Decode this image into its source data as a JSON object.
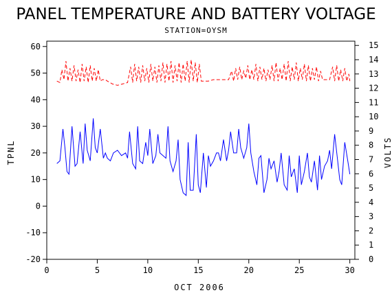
{
  "chart_data": {
    "type": "line",
    "title": "PANEL TEMPERATURE AND BATTERY VOLTAGE",
    "subtitle": "STATION=OYSM",
    "xlabel": "OCT 2006",
    "ylabel_left": "TPNL",
    "ylabel_right": "VOLTS",
    "xlim": [
      0,
      30.5
    ],
    "ylim_left": [
      -20,
      62
    ],
    "ylim_right": [
      0,
      15.3
    ],
    "x_ticks": [
      0,
      5,
      10,
      15,
      20,
      25,
      30
    ],
    "y_left_ticks": [
      -20,
      -10,
      0,
      10,
      20,
      30,
      40,
      50,
      60
    ],
    "y_right_ticks": [
      0,
      1,
      2,
      3,
      4,
      5,
      6,
      7,
      8,
      9,
      10,
      11,
      12,
      13,
      14,
      15
    ],
    "grid": false,
    "series": [
      {
        "axis": "left",
        "color": "#0000ff",
        "style": "solid",
        "x": [
          1.0,
          1.3,
          1.6,
          1.8,
          2.0,
          2.2,
          2.5,
          2.8,
          3.0,
          3.3,
          3.6,
          3.8,
          4.0,
          4.3,
          4.6,
          4.8,
          5.0,
          5.3,
          5.6,
          5.8,
          6.0,
          6.3,
          6.6,
          7.0,
          7.4,
          7.8,
          8.0,
          8.2,
          8.5,
          8.8,
          9.0,
          9.2,
          9.5,
          9.8,
          10.0,
          10.2,
          10.5,
          10.8,
          11.0,
          11.2,
          11.5,
          11.8,
          12.0,
          12.2,
          12.5,
          12.8,
          13.0,
          13.2,
          13.5,
          13.8,
          14.0,
          14.2,
          14.5,
          14.8,
          15.0,
          15.2,
          15.5,
          15.8,
          16.0,
          16.2,
          16.5,
          16.8,
          17.0,
          17.2,
          17.5,
          17.8,
          18.0,
          18.2,
          18.5,
          18.8,
          19.0,
          19.2,
          19.5,
          19.8,
          20.0,
          20.2,
          20.5,
          20.8,
          21.0,
          21.2,
          21.5,
          21.8,
          22.0,
          22.2,
          22.5,
          22.8,
          23.0,
          23.2,
          23.5,
          23.8,
          24.0,
          24.2,
          24.5,
          24.8,
          25.0,
          25.2,
          25.5,
          25.8,
          26.0,
          26.2,
          26.5,
          26.8,
          27.0,
          27.2,
          27.5,
          27.8,
          28.0,
          28.2,
          28.5,
          28.8,
          29.0,
          29.2,
          29.5,
          29.8,
          30.0
        ],
        "values": [
          16,
          17,
          29,
          22,
          13,
          12,
          30,
          15,
          16,
          28,
          16,
          31,
          21,
          17,
          33,
          22,
          20,
          29,
          18,
          20,
          18,
          17,
          20,
          21,
          19,
          20,
          18,
          28,
          16,
          14,
          30,
          17,
          16,
          24,
          19,
          29,
          16,
          19,
          27,
          20,
          19,
          18,
          30,
          17,
          13,
          17,
          25,
          10,
          5,
          4,
          24,
          6,
          6,
          27,
          8,
          5,
          20,
          7,
          19,
          15,
          17,
          20,
          20,
          17,
          25,
          17,
          21,
          28,
          20,
          20,
          29,
          22,
          18,
          22,
          31,
          20,
          13,
          8,
          18,
          19,
          5,
          10,
          18,
          14,
          17,
          9,
          13,
          20,
          8,
          6,
          19,
          11,
          14,
          5,
          19,
          8,
          13,
          20,
          11,
          9,
          17,
          6,
          19,
          10,
          15,
          17,
          21,
          14,
          27,
          17,
          10,
          8,
          24,
          17,
          12
        ]
      },
      {
        "axis": "right",
        "color": "#ff0000",
        "style": "dashed",
        "x": [
          1.0,
          1.3,
          1.5,
          1.7,
          1.9,
          2.1,
          2.3,
          2.5,
          2.7,
          2.9,
          3.1,
          3.3,
          3.5,
          3.7,
          3.9,
          4.1,
          4.3,
          4.5,
          4.7,
          4.9,
          5.1,
          5.3,
          5.5,
          5.8,
          6.0,
          6.5,
          7.0,
          7.5,
          8.0,
          8.3,
          8.5,
          8.7,
          8.9,
          9.1,
          9.3,
          9.5,
          9.7,
          9.9,
          10.1,
          10.3,
          10.5,
          10.7,
          10.9,
          11.1,
          11.3,
          11.5,
          11.7,
          11.9,
          12.1,
          12.3,
          12.5,
          12.7,
          12.9,
          13.1,
          13.3,
          13.5,
          13.7,
          13.9,
          14.1,
          14.3,
          14.5,
          14.7,
          14.9,
          15.1,
          15.3,
          15.5,
          16.0,
          16.5,
          17.0,
          17.5,
          18.0,
          18.3,
          18.5,
          18.7,
          18.9,
          19.1,
          19.3,
          19.5,
          19.7,
          19.9,
          20.1,
          20.3,
          20.5,
          20.7,
          20.9,
          21.1,
          21.3,
          21.5,
          21.7,
          21.9,
          22.1,
          22.3,
          22.5,
          22.7,
          22.9,
          23.1,
          23.3,
          23.5,
          23.7,
          23.9,
          24.1,
          24.3,
          24.5,
          24.7,
          24.9,
          25.1,
          25.3,
          25.5,
          25.7,
          25.9,
          26.1,
          26.3,
          26.5,
          26.7,
          26.9,
          27.1,
          27.3,
          27.5,
          28.0,
          28.3,
          28.5,
          28.7,
          28.9,
          29.1,
          29.3,
          29.5,
          29.7,
          29.9,
          30.0
        ],
        "values": [
          12.5,
          12.4,
          13.3,
          12.6,
          13.9,
          12.5,
          13.4,
          12.5,
          13.6,
          12.5,
          13.3,
          12.4,
          13.7,
          12.5,
          13.5,
          12.4,
          13.6,
          12.5,
          13.4,
          12.5,
          13.3,
          12.5,
          12.6,
          12.6,
          12.5,
          12.3,
          12.2,
          12.3,
          12.4,
          13.5,
          12.4,
          13.7,
          12.5,
          13.5,
          12.4,
          13.6,
          12.5,
          13.4,
          12.4,
          13.7,
          12.5,
          13.5,
          12.4,
          13.6,
          12.5,
          13.8,
          12.4,
          13.7,
          12.5,
          13.9,
          12.4,
          13.6,
          12.5,
          13.8,
          12.4,
          13.7,
          12.5,
          13.9,
          12.4,
          14.0,
          12.5,
          13.8,
          12.4,
          13.7,
          12.5,
          12.5,
          12.5,
          12.6,
          12.6,
          12.6,
          12.6,
          13.2,
          12.5,
          13.4,
          12.6,
          13.5,
          12.6,
          13.2,
          12.7,
          13.6,
          12.6,
          13.3,
          12.6,
          13.7,
          12.5,
          13.5,
          12.6,
          13.4,
          12.5,
          13.3,
          12.6,
          13.6,
          12.5,
          13.8,
          12.5,
          13.4,
          12.6,
          13.7,
          12.5,
          13.9,
          12.5,
          13.5,
          12.6,
          13.8,
          12.5,
          13.4,
          12.6,
          13.7,
          12.5,
          13.6,
          12.5,
          13.4,
          12.6,
          13.5,
          12.5,
          13.2,
          12.6,
          12.6,
          12.6,
          13.5,
          12.5,
          13.6,
          12.5,
          13.3,
          12.5,
          13.4,
          12.5,
          13.0,
          12.5
        ]
      }
    ]
  }
}
